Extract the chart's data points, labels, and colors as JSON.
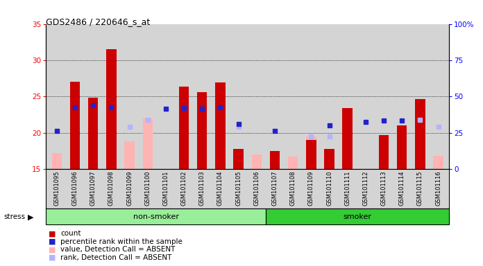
{
  "title": "GDS2486 / 220646_s_at",
  "samples": [
    "GSM101095",
    "GSM101096",
    "GSM101097",
    "GSM101098",
    "GSM101099",
    "GSM101100",
    "GSM101101",
    "GSM101102",
    "GSM101103",
    "GSM101104",
    "GSM101105",
    "GSM101106",
    "GSM101107",
    "GSM101108",
    "GSM101109",
    "GSM101110",
    "GSM101111",
    "GSM101112",
    "GSM101113",
    "GSM101114",
    "GSM101115",
    "GSM101116"
  ],
  "group": [
    "non-smoker",
    "non-smoker",
    "non-smoker",
    "non-smoker",
    "non-smoker",
    "non-smoker",
    "non-smoker",
    "non-smoker",
    "non-smoker",
    "non-smoker",
    "non-smoker",
    "non-smoker",
    "smoker",
    "smoker",
    "smoker",
    "smoker",
    "smoker",
    "smoker",
    "smoker",
    "smoker",
    "smoker",
    "smoker"
  ],
  "count_values": [
    null,
    27.0,
    24.8,
    31.5,
    null,
    null,
    null,
    26.4,
    25.6,
    26.9,
    17.8,
    null,
    17.5,
    null,
    19.0,
    17.8,
    23.4,
    null,
    19.7,
    21.0,
    24.6,
    null
  ],
  "rank_values": [
    20.2,
    23.5,
    23.8,
    23.5,
    null,
    null,
    23.3,
    23.4,
    23.3,
    23.5,
    21.2,
    null,
    20.2,
    null,
    null,
    21.0,
    null,
    21.5,
    21.7,
    21.7,
    null,
    null
  ],
  "absent_value_values": [
    17.2,
    null,
    null,
    null,
    18.8,
    22.0,
    null,
    null,
    null,
    null,
    17.5,
    17.0,
    17.5,
    16.7,
    19.5,
    15.2,
    null,
    null,
    null,
    null,
    19.5,
    16.8
  ],
  "absent_rank_values": [
    null,
    null,
    null,
    null,
    20.8,
    21.8,
    null,
    null,
    null,
    null,
    20.8,
    null,
    null,
    null,
    19.5,
    19.5,
    null,
    null,
    null,
    null,
    21.8,
    20.8
  ],
  "ylim_left": [
    15,
    35
  ],
  "ylim_right": [
    0,
    100
  ],
  "yticks_left": [
    15,
    20,
    25,
    30,
    35
  ],
  "yticks_right": [
    0,
    25,
    50,
    75,
    100
  ],
  "right_tick_labels": [
    "0",
    "25",
    "50",
    "75",
    "100%"
  ],
  "bar_color": "#cc0000",
  "rank_color": "#2222cc",
  "absent_value_color": "#ffb3b3",
  "absent_rank_color": "#b3b3ff",
  "non_smoker_color": "#99ee99",
  "smoker_color": "#33cc33",
  "axis_bg": "#d4d4d4",
  "bar_width": 0.55,
  "marker_size": 4,
  "grid_lines": [
    20,
    25,
    30
  ],
  "non_smoker_count": 12,
  "total_count": 22
}
